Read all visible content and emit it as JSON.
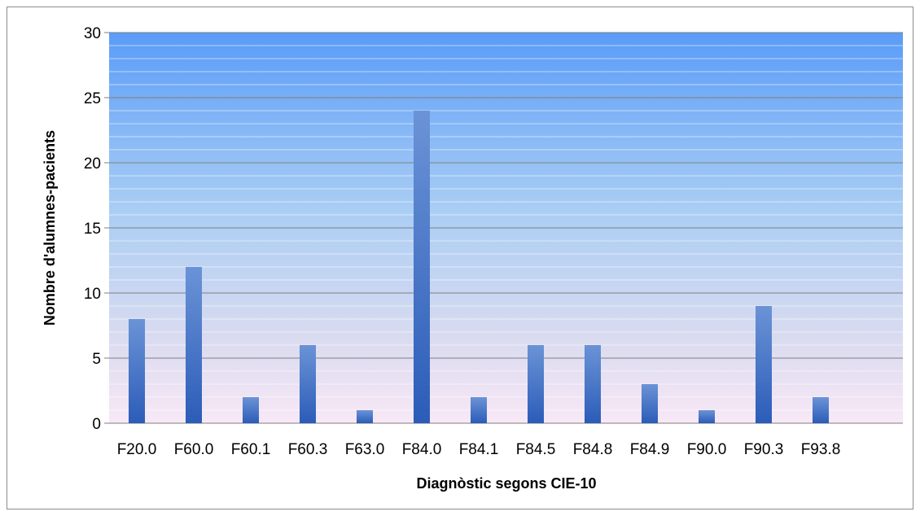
{
  "chart_data": {
    "type": "bar",
    "title": "",
    "xlabel": "Diagnòstic segons CIE-10",
    "ylabel": "Nombre d'alumnes-pacients",
    "categories": [
      "F20.0",
      "F60.0",
      "F60.1",
      "F60.3",
      "F63.0",
      "F84.0",
      "F84.1",
      "F84.5",
      "F84.8",
      "F84.9",
      "F90.0",
      "F90.3",
      "F93.8"
    ],
    "values": [
      8,
      12,
      2,
      6,
      1,
      24,
      2,
      6,
      6,
      3,
      1,
      9,
      2
    ],
    "ylim": [
      0,
      30
    ],
    "yticks": [
      "0",
      "5",
      "10",
      "15",
      "20",
      "25",
      "30"
    ],
    "grid": true,
    "legend": "none",
    "colors": {
      "bar_dark": "#2b5cb8",
      "bar_light": "#6b93d6",
      "plot_top": "#5a9cf8",
      "plot_bottom": "#f8e8f6",
      "grid": "#7f7f7f"
    }
  }
}
